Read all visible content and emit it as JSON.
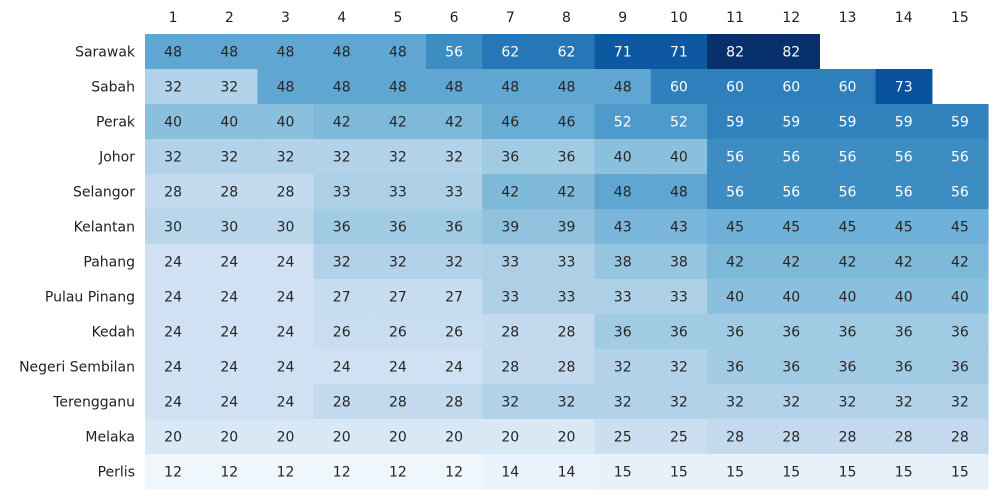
{
  "chart_data": {
    "type": "heatmap",
    "title": "",
    "xlabel": "",
    "ylabel": "",
    "columns": [
      "1",
      "2",
      "3",
      "4",
      "5",
      "6",
      "7",
      "8",
      "9",
      "10",
      "11",
      "12",
      "13",
      "14",
      "15"
    ],
    "rows": [
      "Sarawak",
      "Sabah",
      "Perak",
      "Johor",
      "Selangor",
      "Kelantan",
      "Pahang",
      "Pulau Pinang",
      "Kedah",
      "Negeri Sembilan",
      "Terengganu",
      "Melaka",
      "Perlis"
    ],
    "values": [
      [
        48,
        48,
        48,
        48,
        48,
        56,
        62,
        62,
        71,
        71,
        82,
        82,
        null,
        null,
        null
      ],
      [
        32,
        32,
        48,
        48,
        48,
        48,
        48,
        48,
        48,
        60,
        60,
        60,
        60,
        73,
        null
      ],
      [
        40,
        40,
        40,
        42,
        42,
        42,
        46,
        46,
        52,
        52,
        59,
        59,
        59,
        59,
        59
      ],
      [
        32,
        32,
        32,
        32,
        32,
        32,
        36,
        36,
        40,
        40,
        56,
        56,
        56,
        56,
        56
      ],
      [
        28,
        28,
        28,
        33,
        33,
        33,
        42,
        42,
        48,
        48,
        56,
        56,
        56,
        56,
        56
      ],
      [
        30,
        30,
        30,
        36,
        36,
        36,
        39,
        39,
        43,
        43,
        45,
        45,
        45,
        45,
        45
      ],
      [
        24,
        24,
        24,
        32,
        32,
        32,
        33,
        33,
        38,
        38,
        42,
        42,
        42,
        42,
        42
      ],
      [
        24,
        24,
        24,
        27,
        27,
        27,
        33,
        33,
        33,
        33,
        40,
        40,
        40,
        40,
        40
      ],
      [
        24,
        24,
        24,
        26,
        26,
        26,
        28,
        28,
        36,
        36,
        36,
        36,
        36,
        36,
        36
      ],
      [
        24,
        24,
        24,
        24,
        24,
        24,
        28,
        28,
        32,
        32,
        36,
        36,
        36,
        36,
        36
      ],
      [
        24,
        24,
        24,
        28,
        28,
        28,
        32,
        32,
        32,
        32,
        32,
        32,
        32,
        32,
        32
      ],
      [
        20,
        20,
        20,
        20,
        20,
        20,
        20,
        20,
        25,
        25,
        28,
        28,
        28,
        28,
        28
      ],
      [
        12,
        12,
        12,
        12,
        12,
        12,
        14,
        14,
        15,
        15,
        15,
        15,
        15,
        15,
        15
      ]
    ],
    "colormap": "Blues",
    "value_range": [
      12,
      82
    ],
    "grid": false,
    "legend": "none"
  }
}
